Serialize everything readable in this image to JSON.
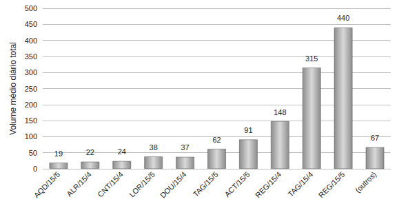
{
  "chart_data": {
    "type": "bar",
    "y_label": "Volume médio diário total",
    "categories": [
      "AQD/15/5",
      "ALR/15/4",
      "CNT/15/4",
      "LOR/15/5",
      "DOU/15/4",
      "TAG/15/5",
      "ACT/15/5",
      "REG/15/4",
      "TAG/15/4",
      "REG/15/5",
      "(outros)"
    ],
    "values": [
      19,
      22,
      24,
      38,
      37,
      62,
      91,
      148,
      315,
      440,
      67
    ],
    "color": "#8c8c8c",
    "ylim": [
      0,
      500
    ],
    "yticks": [
      0,
      50,
      100,
      150,
      200,
      250,
      300,
      350,
      400,
      450,
      500
    ],
    "grid": true,
    "data_labels": true
  }
}
